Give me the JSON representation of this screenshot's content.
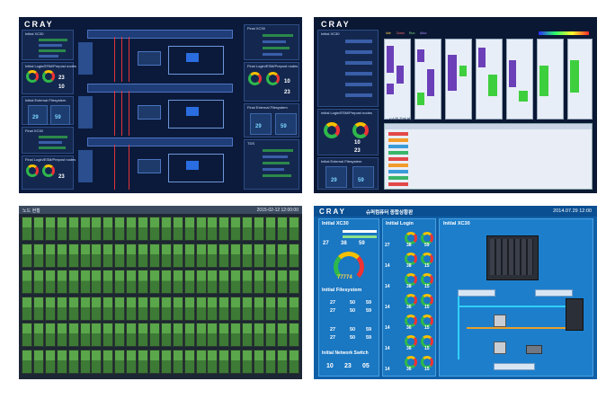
{
  "screens": {
    "top_left": {
      "logo": "CRAY",
      "panels_left": [
        {
          "title": "Initial XC30"
        },
        {
          "title": "Initial Login/ESM/Prepost nodes"
        },
        {
          "title": "Initial External Filesystem"
        },
        {
          "title": "Final XC30"
        },
        {
          "title": "Final Login/ESM/Prepost nodes"
        }
      ],
      "panels_right": [
        {
          "title": "Final XC30"
        },
        {
          "title": "Final Login/ESM/Prepost nodes"
        },
        {
          "title": "Final External Filesystem"
        },
        {
          "title": "TDS"
        }
      ],
      "gauge_values": [
        "23",
        "10",
        "23",
        "10",
        "23"
      ],
      "fs_values": [
        "29",
        "59",
        "29",
        "59"
      ]
    },
    "top_right": {
      "logo": "CRAY",
      "left_panels": [
        {
          "title": "Initial XC30"
        },
        {
          "title": "Initial Login/ESM/Prepost nodes"
        },
        {
          "title": "Initial External Filesystem"
        }
      ],
      "values": [
        "10",
        "23",
        "29",
        "59"
      ],
      "table_title": "시스템 장애 현황",
      "legend": [
        "Idle",
        "Down",
        "Run",
        "Alloc"
      ]
    },
    "bottom_left": {
      "title": "노드 현황",
      "datetime": "2015-02-12 12:00:00"
    },
    "bottom_right": {
      "logo": "CRAY",
      "subtitle": "슈퍼컴퓨터 종합상황판",
      "datetime": "2014.07.29 12:00",
      "col_left": {
        "title": "Initial XC30",
        "stats": [
          "27",
          "38",
          "59"
        ],
        "counter": "77774",
        "fs_title": "Initial Filesystem",
        "fs_rows": [
          [
            "27",
            "50",
            "59"
          ],
          [
            "27",
            "50",
            "59"
          ]
        ],
        "fs_rows2": [
          [
            "27",
            "50",
            "59"
          ],
          [
            "27",
            "50",
            "59"
          ]
        ],
        "switch_title": "Initial Network Switch",
        "switch_values": [
          "10",
          "23",
          "05"
        ]
      },
      "col_mid": {
        "title": "Initial Login",
        "rows": [
          [
            "27",
            "38",
            "59"
          ],
          [
            "14",
            "38",
            "15"
          ],
          [
            "14",
            "38",
            "15"
          ],
          [
            "14",
            "36",
            "15"
          ],
          [
            "14",
            "36",
            "15"
          ],
          [
            "14",
            "36",
            "15"
          ],
          [
            "14",
            "36",
            "15"
          ]
        ]
      },
      "col_right": {
        "title": "Initial XC30"
      }
    }
  }
}
